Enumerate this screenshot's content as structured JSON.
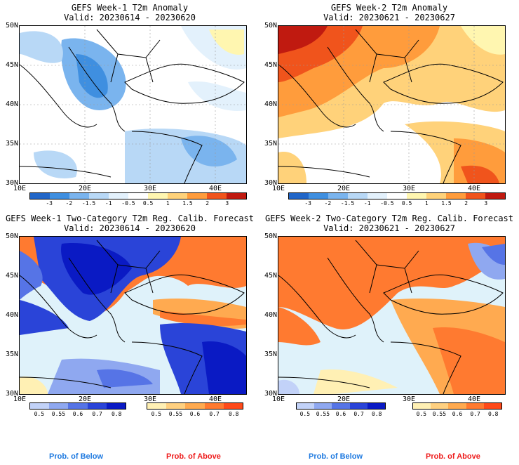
{
  "panels": [
    {
      "title": "GEFS Week-1 T2m Anomaly",
      "valid": "Valid: 20230614 - 20230620"
    },
    {
      "title": "GEFS Week-2 T2m Anomaly",
      "valid": "Valid: 20230621 - 20230627"
    },
    {
      "title": "GEFS Week-1 Two-Category T2m Reg. Calib. Forecast",
      "valid": "Valid: 20230614 - 20230620"
    },
    {
      "title": "GEFS Week-2 Two-Category T2m Reg. Calib. Forecast",
      "valid": "Valid: 20230621 - 20230627"
    }
  ],
  "lat_labels": [
    "50N",
    "45N",
    "40N",
    "35N",
    "30N"
  ],
  "lon_labels": [
    "10E",
    "20E",
    "30E",
    "40E"
  ],
  "anomaly_colorbar": {
    "ticks": [
      "-3",
      "-2",
      "-1.5",
      "-1",
      "-0.5",
      "0.5",
      "1",
      "1.5",
      "2",
      "3"
    ],
    "colors": [
      "#2166c8",
      "#3f8fe0",
      "#7ab4ee",
      "#b8d8f6",
      "#e3f1fc",
      "#ffffff",
      "#fff6b0",
      "#ffd27a",
      "#ff9c3c",
      "#f0541c",
      "#c01a10"
    ]
  },
  "prob_colorbar": {
    "ticks": [
      "0.5",
      "0.55",
      "0.6",
      "0.7",
      "0.8"
    ],
    "below_colors": [
      "#c2d2f8",
      "#8fa8f0",
      "#5674e6",
      "#2a44d8",
      "#0a1ac4"
    ],
    "above_colors": [
      "#fff0b4",
      "#ffd080",
      "#ffaa50",
      "#ff7a30",
      "#ff4a1a"
    ]
  },
  "footer": {
    "below": "Prob. of Below",
    "above": "Prob. of Above"
  },
  "colors": {
    "sea": "#dff2fa",
    "coast": "#000000"
  }
}
